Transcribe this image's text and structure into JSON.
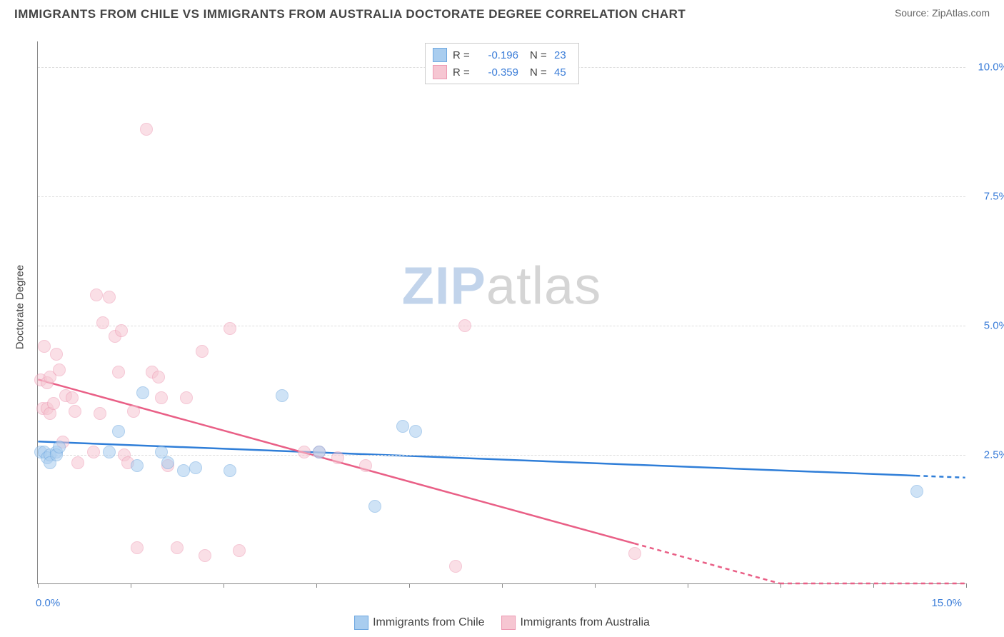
{
  "title": "IMMIGRANTS FROM CHILE VS IMMIGRANTS FROM AUSTRALIA DOCTORATE DEGREE CORRELATION CHART",
  "source": "Source: ZipAtlas.com",
  "y_axis_label": "Doctorate Degree",
  "watermark": {
    "part1": "ZIP",
    "part2": "atlas"
  },
  "chart": {
    "type": "scatter",
    "xlim": [
      0.0,
      15.0
    ],
    "ylim": [
      0.0,
      10.5
    ],
    "y_gridlines": [
      2.5,
      5.0,
      7.5,
      10.0
    ],
    "y_tick_labels": [
      "2.5%",
      "5.0%",
      "7.5%",
      "10.0%"
    ],
    "x_ticks": [
      0.0,
      1.5,
      3.0,
      4.5,
      6.0,
      7.5,
      9.0,
      10.5,
      12.0,
      13.5,
      15.0
    ],
    "x_tick_labels": {
      "0.0": "0.0%",
      "15.0": "15.0%"
    },
    "background_color": "#ffffff",
    "grid_color": "#dddddd",
    "axis_color": "#888888",
    "point_radius": 9,
    "point_opacity": 0.55,
    "point_border_width": 1.2
  },
  "series": [
    {
      "id": "chile",
      "label": "Immigrants from Chile",
      "color_fill": "#a9cdef",
      "color_stroke": "#6fa8e0",
      "trend_color": "#2f7ed8",
      "trend_width": 2.5,
      "trend_dash_after_last": true,
      "R": "-0.196",
      "N": "23",
      "trend": {
        "x1": 0.0,
        "y1": 2.75,
        "x2": 15.0,
        "y2": 2.05
      },
      "points": [
        [
          0.05,
          2.55
        ],
        [
          0.1,
          2.55
        ],
        [
          0.15,
          2.45
        ],
        [
          0.2,
          2.5
        ],
        [
          0.2,
          2.35
        ],
        [
          0.3,
          2.55
        ],
        [
          0.3,
          2.5
        ],
        [
          0.35,
          2.65
        ],
        [
          1.15,
          2.55
        ],
        [
          1.3,
          2.95
        ],
        [
          1.6,
          2.3
        ],
        [
          1.7,
          3.7
        ],
        [
          2.0,
          2.55
        ],
        [
          2.1,
          2.35
        ],
        [
          2.35,
          2.2
        ],
        [
          2.55,
          2.25
        ],
        [
          3.1,
          2.2
        ],
        [
          3.95,
          3.65
        ],
        [
          4.55,
          2.55
        ],
        [
          5.45,
          1.5
        ],
        [
          5.9,
          3.05
        ],
        [
          6.1,
          2.95
        ],
        [
          14.2,
          1.8
        ]
      ]
    },
    {
      "id": "australia",
      "label": "Immigrants from Australia",
      "color_fill": "#f6c6d2",
      "color_stroke": "#ed9ab3",
      "trend_color": "#e95f86",
      "trend_width": 2.5,
      "trend_dash_after_last": true,
      "R": "-0.359",
      "N": "45",
      "trend": {
        "x1": 0.0,
        "y1": 3.95,
        "x2": 12.0,
        "y2": 0.0
      },
      "dash_ext": {
        "x1": 12.0,
        "y1": 0.0,
        "x2": 15.0,
        "y2": 0.0
      },
      "points": [
        [
          0.05,
          3.95
        ],
        [
          0.08,
          3.4
        ],
        [
          0.1,
          4.6
        ],
        [
          0.15,
          3.9
        ],
        [
          0.15,
          3.4
        ],
        [
          0.2,
          4.0
        ],
        [
          0.2,
          3.3
        ],
        [
          0.25,
          3.5
        ],
        [
          0.3,
          4.45
        ],
        [
          0.35,
          4.15
        ],
        [
          0.4,
          2.75
        ],
        [
          0.45,
          3.65
        ],
        [
          0.55,
          3.6
        ],
        [
          0.6,
          3.35
        ],
        [
          0.65,
          2.35
        ],
        [
          0.9,
          2.55
        ],
        [
          0.95,
          5.6
        ],
        [
          1.0,
          3.3
        ],
        [
          1.05,
          5.05
        ],
        [
          1.15,
          5.55
        ],
        [
          1.25,
          4.8
        ],
        [
          1.3,
          4.1
        ],
        [
          1.35,
          4.9
        ],
        [
          1.4,
          2.5
        ],
        [
          1.45,
          2.35
        ],
        [
          1.55,
          3.35
        ],
        [
          1.6,
          0.7
        ],
        [
          1.75,
          8.8
        ],
        [
          1.85,
          4.1
        ],
        [
          1.95,
          4.0
        ],
        [
          2.0,
          3.6
        ],
        [
          2.1,
          2.3
        ],
        [
          2.25,
          0.7
        ],
        [
          2.4,
          3.6
        ],
        [
          2.65,
          4.5
        ],
        [
          2.7,
          0.55
        ],
        [
          3.1,
          4.95
        ],
        [
          3.25,
          0.65
        ],
        [
          4.3,
          2.55
        ],
        [
          4.55,
          2.55
        ],
        [
          4.85,
          2.45
        ],
        [
          5.3,
          2.3
        ],
        [
          6.75,
          0.35
        ],
        [
          6.9,
          5.0
        ],
        [
          9.65,
          0.6
        ]
      ]
    }
  ],
  "legend_top": {
    "r_label": "R =",
    "n_label": "N ="
  }
}
